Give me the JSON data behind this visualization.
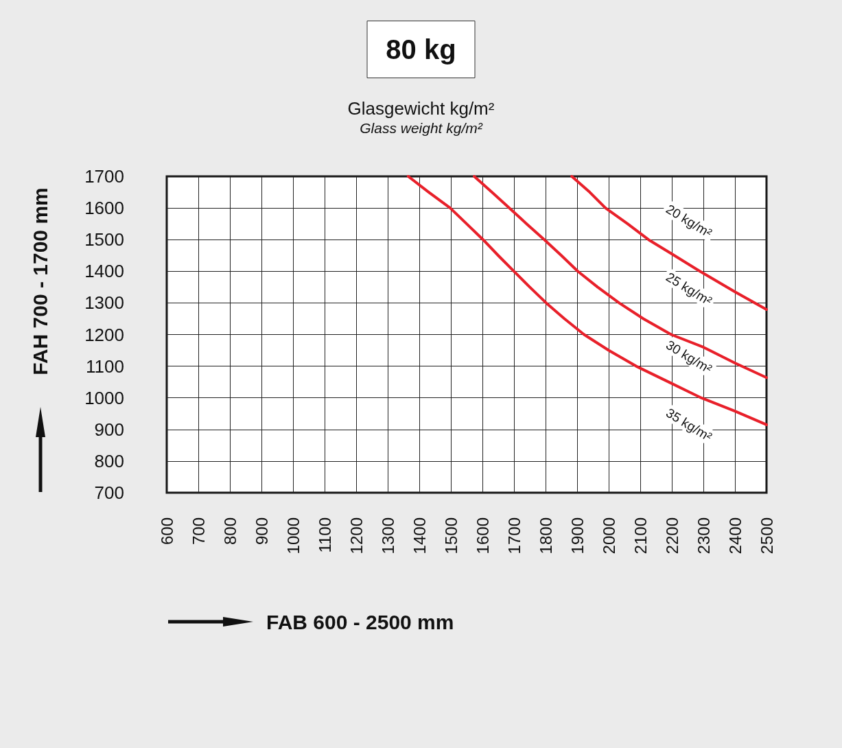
{
  "chart_data": {
    "type": "line",
    "title": "80 kg",
    "subtitle": "Glasgewicht kg/m²\nGlass weight kg/m²",
    "xlabel": "FAB 600 - 2500 mm",
    "ylabel": "FAH 700 - 1700 mm",
    "xlim": [
      600,
      2500
    ],
    "xticks": [
      600,
      700,
      800,
      900,
      1000,
      1100,
      1200,
      1300,
      1400,
      1500,
      1600,
      1700,
      1800,
      1900,
      2000,
      2100,
      2200,
      2300,
      2400,
      2500
    ],
    "ylim": [
      700,
      1700
    ],
    "yticks": [
      700,
      800,
      900,
      1000,
      1100,
      1200,
      1300,
      1400,
      1500,
      1600,
      1700
    ],
    "grid": true,
    "marker": "none",
    "line_style": "solid",
    "series": [
      {
        "color": "#e8202a",
        "x": [
          1883,
          1940,
          1990,
          2060,
          2126,
          2200,
          2289,
          2400,
          2500
        ],
        "values": [
          1700,
          1650,
          1600,
          1550,
          1500,
          1455,
          1400,
          1335,
          1279
        ]
      },
      {
        "color": "#e8202a",
        "x": [
          1574,
          1630,
          1685,
          1740,
          1796,
          1850,
          1902,
          1965,
          2033,
          2110,
          2198,
          2300,
          2400,
          2500
        ],
        "values": [
          1700,
          1650,
          1600,
          1550,
          1500,
          1450,
          1400,
          1350,
          1300,
          1250,
          1200,
          1160,
          1110,
          1064
        ]
      },
      {
        "color": "#e8202a",
        "x": [
          1365,
          1430,
          1498,
          1550,
          1602,
          1650,
          1700,
          1750,
          1802,
          1860,
          1922,
          2000,
          2087,
          2190,
          2293,
          2400,
          2500
        ],
        "values": [
          1700,
          1650,
          1600,
          1550,
          1500,
          1450,
          1400,
          1350,
          1300,
          1250,
          1200,
          1150,
          1100,
          1050,
          1000,
          958,
          915
        ]
      }
    ],
    "annotations": [
      "20 kg/m²",
      "25 kg/m²",
      "30 kg/m²",
      "35 kg/m²"
    ]
  }
}
